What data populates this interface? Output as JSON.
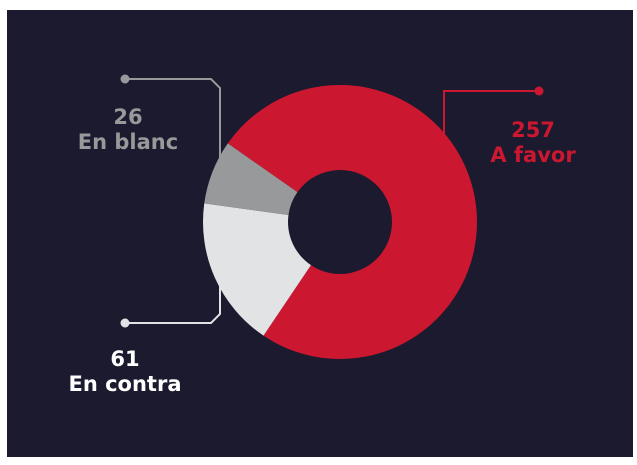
{
  "chart_data": {
    "type": "pie",
    "variant": "donut",
    "slices": [
      {
        "label": "A favor",
        "value": 257,
        "color": "#cc1730"
      },
      {
        "label": "En contra",
        "value": 61,
        "color": "#e2e3e5"
      },
      {
        "label": "En blanc",
        "value": 26,
        "color": "#98999b"
      }
    ],
    "background": "#1b1a2e",
    "legend": "none"
  }
}
